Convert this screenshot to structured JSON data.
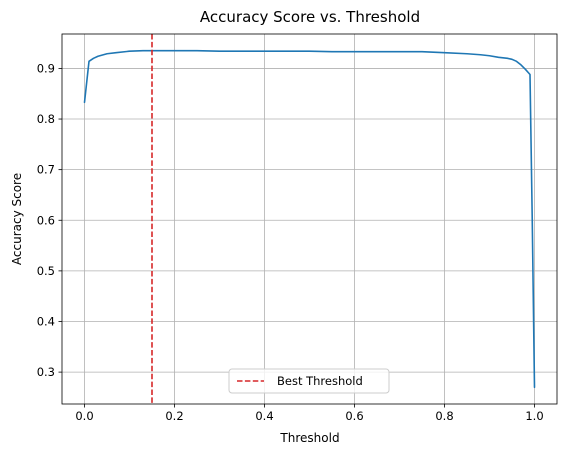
{
  "chart_data": {
    "type": "line",
    "title": "Accuracy Score vs. Threshold",
    "xlabel": "Threshold",
    "ylabel": "Accuracy Score",
    "xlim": [
      -0.05,
      1.05
    ],
    "ylim": [
      0.237,
      0.968
    ],
    "grid": true,
    "x_ticks": [
      0.0,
      0.2,
      0.4,
      0.6,
      0.8,
      1.0
    ],
    "x_tick_labels": [
      "0.0",
      "0.2",
      "0.4",
      "0.6",
      "0.8",
      "1.0"
    ],
    "y_ticks": [
      0.3,
      0.4,
      0.5,
      0.6,
      0.7,
      0.8,
      0.9
    ],
    "y_tick_labels": [
      "0.3",
      "0.4",
      "0.5",
      "0.6",
      "0.7",
      "0.8",
      "0.9"
    ],
    "series": [
      {
        "color": "#1f77b4",
        "x": [
          0.0,
          0.01,
          0.02,
          0.03,
          0.05,
          0.07,
          0.1,
          0.13,
          0.15,
          0.2,
          0.25,
          0.3,
          0.35,
          0.4,
          0.45,
          0.5,
          0.55,
          0.6,
          0.65,
          0.7,
          0.75,
          0.8,
          0.85,
          0.88,
          0.9,
          0.92,
          0.94,
          0.95,
          0.96,
          0.97,
          0.98,
          0.99,
          0.995,
          1.0
        ],
        "y": [
          0.833,
          0.914,
          0.92,
          0.924,
          0.929,
          0.931,
          0.934,
          0.935,
          0.935,
          0.935,
          0.935,
          0.934,
          0.934,
          0.934,
          0.934,
          0.934,
          0.933,
          0.933,
          0.933,
          0.933,
          0.933,
          0.931,
          0.929,
          0.927,
          0.925,
          0.922,
          0.92,
          0.918,
          0.914,
          0.907,
          0.898,
          0.888,
          0.6,
          0.27
        ]
      }
    ],
    "reference_lines": [
      {
        "orientation": "vertical",
        "x": 0.15,
        "color": "#d62728",
        "style": "dashed",
        "name": "Best Threshold"
      }
    ],
    "legend": {
      "placement": "bottom-center",
      "entries": [
        "Best Threshold"
      ]
    }
  }
}
